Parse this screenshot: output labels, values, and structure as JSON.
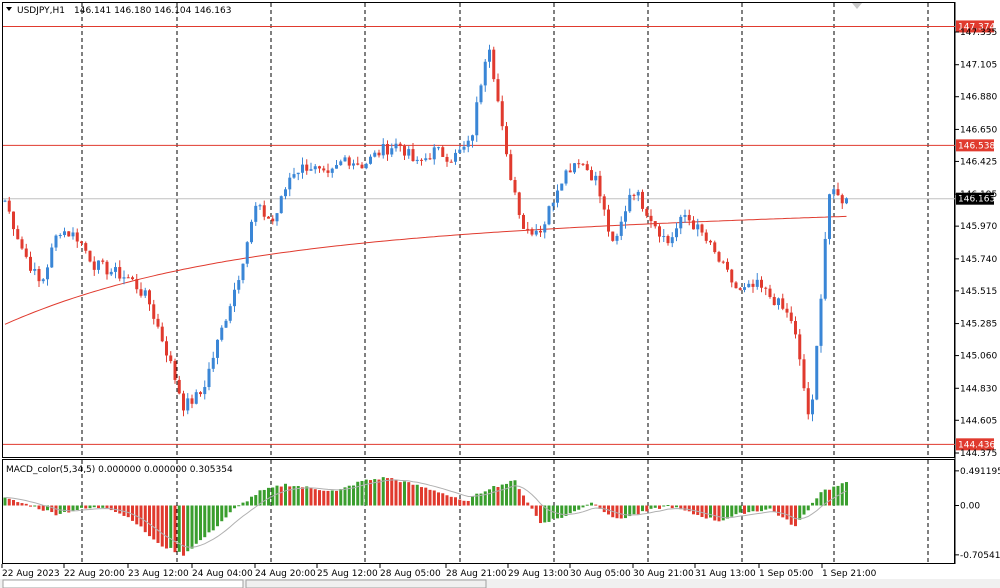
{
  "header": {
    "symbol": "USDJPY,H1",
    "ohlc": "146.141 146.180 146.104 146.163"
  },
  "indicator": {
    "title": "MACD_color(5,34,5) 0.000000 0.000000 0.305354",
    "axis_labels": [
      "0.491195",
      "0.00",
      "-0.705418"
    ]
  },
  "colors": {
    "bull": "#3a86d6",
    "bear": "#e03a2e",
    "ma": "#e03a2e",
    "level": "#e03a2e",
    "macd_pos": "#3a9e2e",
    "macd_neg": "#e03a2e",
    "signal": "#b0b0b0"
  },
  "chart_data": {
    "type": "candlestick",
    "price_axis": [
      "147.335",
      "147.105",
      "146.880",
      "146.650",
      "146.425",
      "146.195",
      "145.970",
      "145.740",
      "145.515",
      "145.285",
      "145.060",
      "144.830",
      "144.605",
      "144.375"
    ],
    "levels": [
      {
        "label": "147.374",
        "value": 147.374
      },
      {
        "label": "146.538",
        "value": 146.538
      },
      {
        "label": "144.436",
        "value": 144.436
      }
    ],
    "current_price": {
      "label": "146.163",
      "value": 146.163
    },
    "time_labels": [
      "22 Aug 2023",
      "22 Aug 20:00",
      "23 Aug 12:00",
      "24 Aug 04:00",
      "24 Aug 20:00",
      "25 Aug 12:00",
      "28 Aug 05:00",
      "28 Aug 21:00",
      "29 Aug 13:00",
      "30 Aug 05:00",
      "30 Aug 21:00",
      "31 Aug 13:00",
      "1 Sep 05:00",
      "1 Sep 21:00"
    ],
    "key_points": [
      146.15,
      145.8,
      145.55,
      145.95,
      145.9,
      145.7,
      145.65,
      145.6,
      145.45,
      145.1,
      144.7,
      144.8,
      145.2,
      145.6,
      146.1,
      146.0,
      146.35,
      146.4,
      146.3,
      146.45,
      146.4,
      146.5,
      146.55,
      146.4,
      146.5,
      146.45,
      146.55,
      147.3,
      146.45,
      145.95,
      145.95,
      146.3,
      146.45,
      146.3,
      145.8,
      146.25,
      146.05,
      145.85,
      146.05,
      145.9,
      145.7,
      145.5,
      145.55,
      145.45,
      145.3,
      144.55,
      146.2,
      146.15
    ],
    "macd_key_points": [
      0.1,
      0.0,
      -0.12,
      -0.05,
      -0.02,
      -0.2,
      -0.55,
      -0.7,
      -0.4,
      -0.05,
      0.2,
      0.3,
      0.25,
      0.2,
      0.35,
      0.4,
      0.3,
      0.2,
      0.05,
      0.25,
      0.35,
      -0.25,
      -0.15,
      0.05,
      -0.2,
      -0.1,
      0.0,
      -0.12,
      -0.22,
      -0.1,
      -0.05,
      -0.3,
      0.2,
      0.32
    ]
  }
}
